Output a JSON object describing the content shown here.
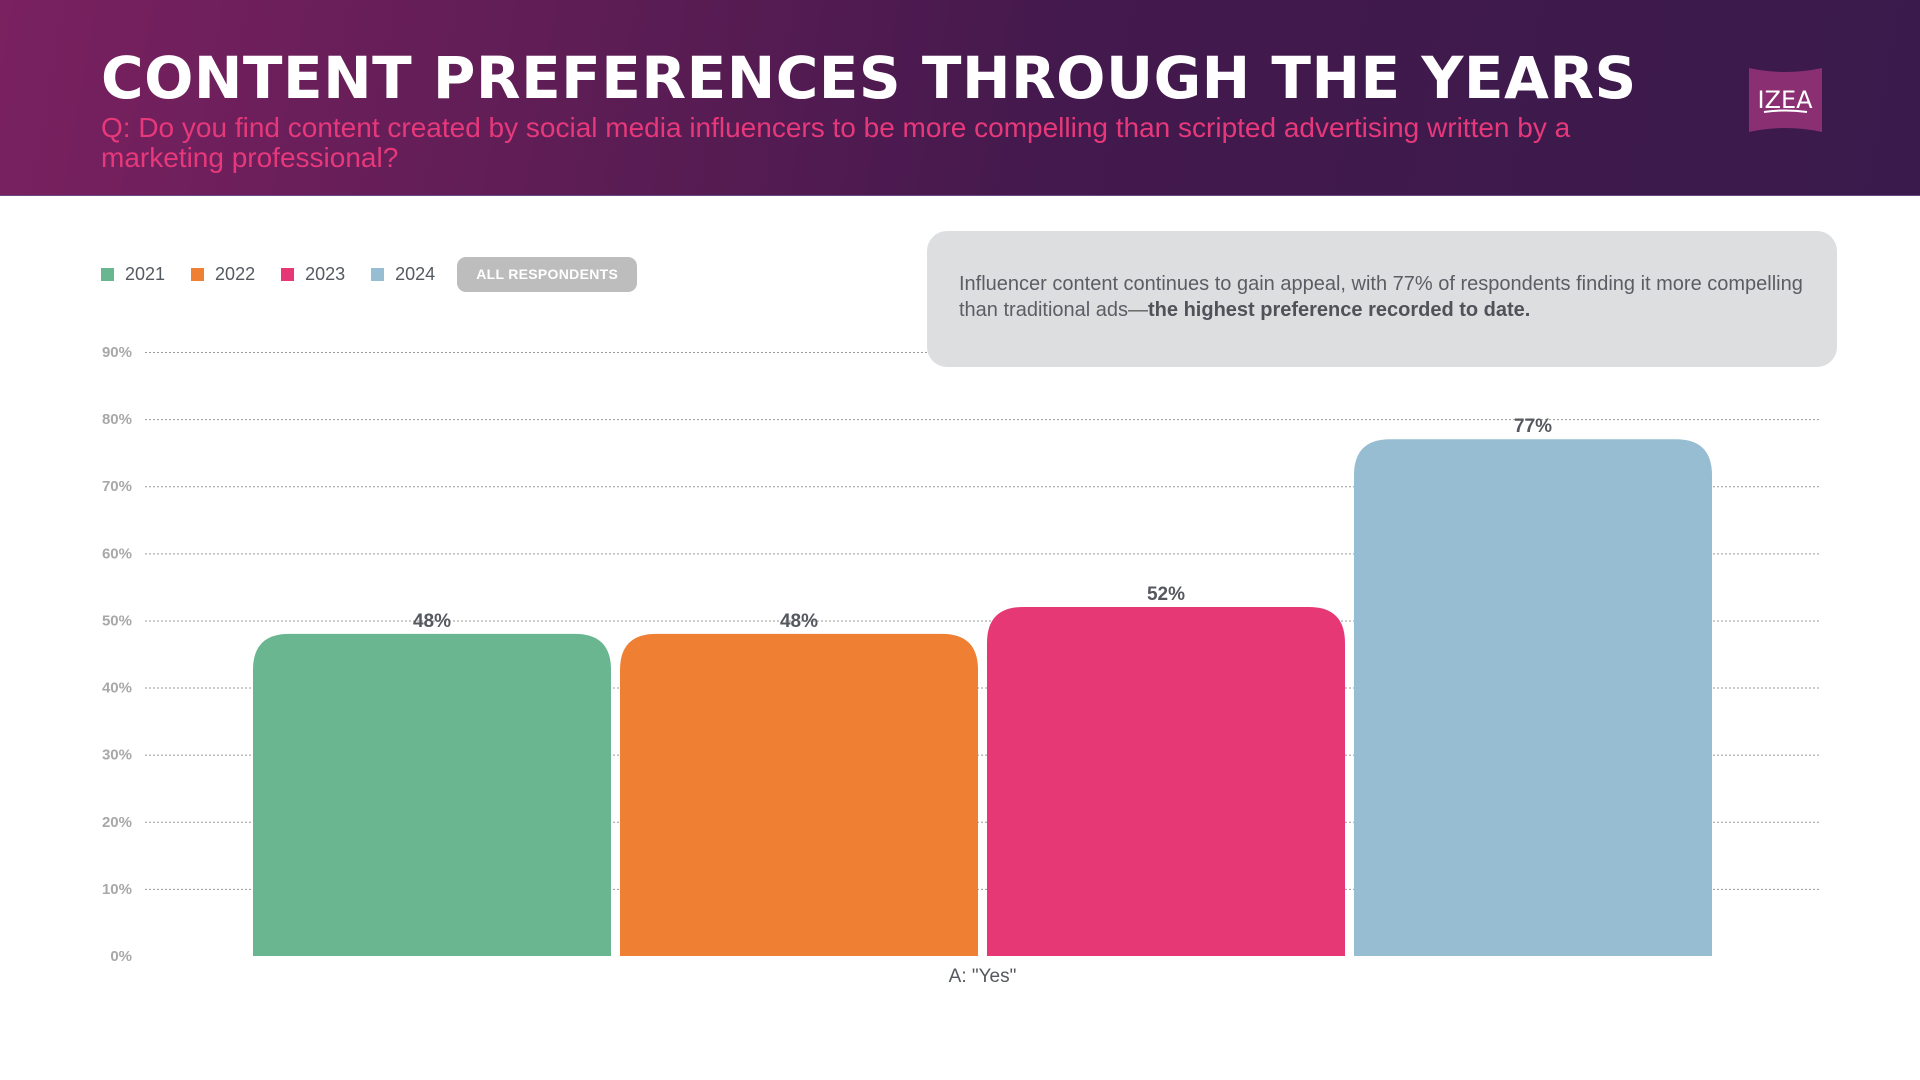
{
  "header": {
    "title": "CONTENT PREFERENCES THROUGH THE YEARS",
    "question": "Q: Do you find content created by social media influencers to be more compelling than scripted advertising written by a marketing professional?",
    "logo_text": "IZEA"
  },
  "legend": {
    "items": [
      {
        "label": "2021",
        "color": "#69b690"
      },
      {
        "label": "2022",
        "color": "#ee7f33"
      },
      {
        "label": "2023",
        "color": "#e63874"
      },
      {
        "label": "2024",
        "color": "#96bdd1"
      }
    ],
    "filter_button": "ALL RESPONDENTS"
  },
  "callout": {
    "text": "Influencer content continues to gain appeal, with 77% of respondents finding it more compelling than traditional ads—",
    "bold_text": "the highest preference recorded to date."
  },
  "colors": {
    "header_start": "#7a2160",
    "header_end": "#3a1a4c",
    "question": "#e6387a",
    "logo_bg": "#8a2f72"
  },
  "chart_data": {
    "type": "bar",
    "title": "CONTENT PREFERENCES THROUGH THE YEARS",
    "categories": [
      "A: \"Yes\""
    ],
    "series": [
      {
        "name": "2021",
        "values": [
          48
        ],
        "label": "48%",
        "color": "#69b690"
      },
      {
        "name": "2022",
        "values": [
          48
        ],
        "label": "48%",
        "color": "#ee7f33"
      },
      {
        "name": "2023",
        "values": [
          52
        ],
        "label": "52%",
        "color": "#e63874"
      },
      {
        "name": "2024",
        "values": [
          77
        ],
        "label": "77%",
        "color": "#96bdd1"
      }
    ],
    "xlabel": "A: \"Yes\"",
    "ylabel": "",
    "ylim": [
      0,
      90
    ],
    "yticks": [
      0,
      10,
      20,
      30,
      40,
      50,
      60,
      70,
      80,
      90
    ],
    "ytick_labels": [
      "0%",
      "10%",
      "20%",
      "30%",
      "40%",
      "50%",
      "60%",
      "70%",
      "80%",
      "90%"
    ],
    "grid": true,
    "legend_position": "top-left"
  }
}
